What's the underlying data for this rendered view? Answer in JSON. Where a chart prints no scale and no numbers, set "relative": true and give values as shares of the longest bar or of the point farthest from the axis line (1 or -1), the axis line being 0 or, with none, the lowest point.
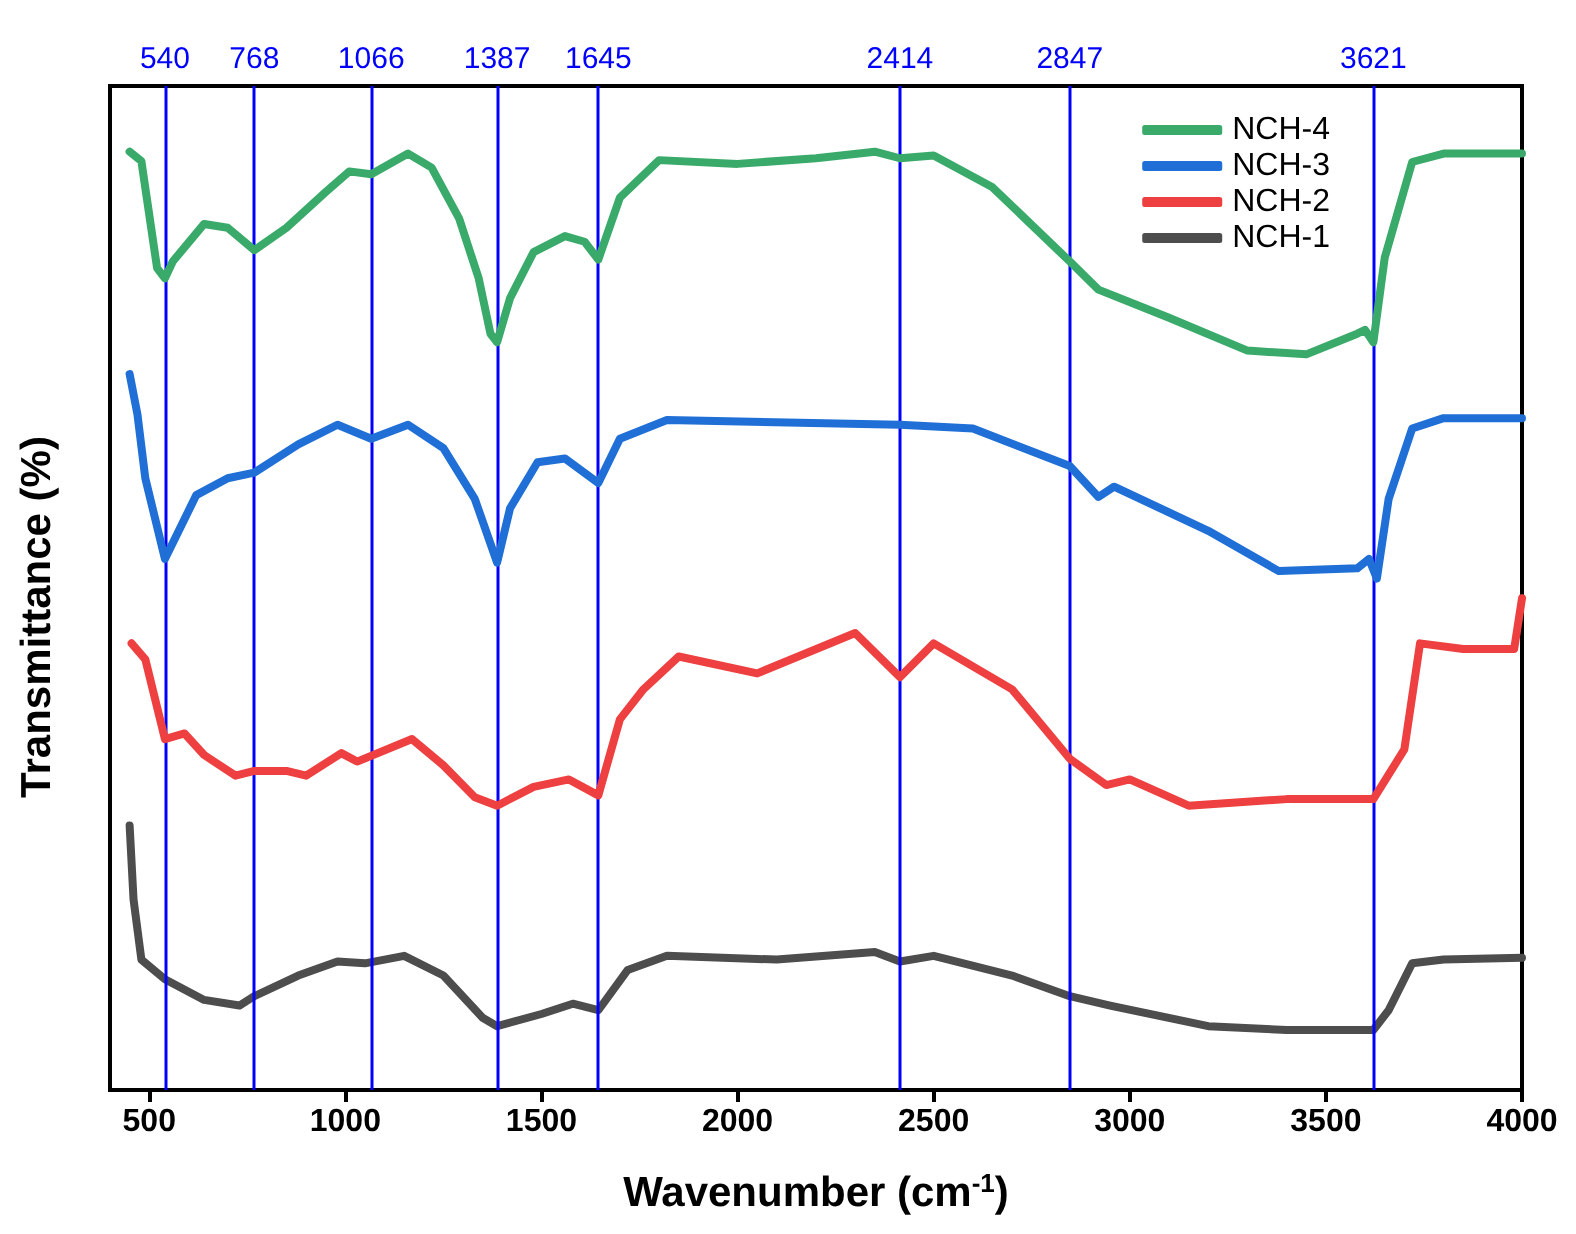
{
  "chart_data": {
    "type": "line",
    "xlabel": "Wavenumber (cm$^{-1}$)",
    "ylabel": "Transmittance (%)",
    "relative": true,
    "xlim": [
      400,
      4000
    ],
    "xticks": [
      500,
      1000,
      1500,
      2000,
      2500,
      3000,
      3500,
      4000
    ],
    "legend": "top right",
    "grid": false,
    "marker": "none",
    "line_style": "solid",
    "ref_lines": [
      {
        "axis": "x",
        "value": 540,
        "label": "540",
        "color": "#0000ff"
      },
      {
        "axis": "x",
        "value": 768,
        "label": "768",
        "color": "#0000ff"
      },
      {
        "axis": "x",
        "value": 1066,
        "label": "1066",
        "color": "#0000ff"
      },
      {
        "axis": "x",
        "value": 1387,
        "label": "1387",
        "color": "#0000ff"
      },
      {
        "axis": "x",
        "value": 1645,
        "label": "1645",
        "color": "#0000ff"
      },
      {
        "axis": "x",
        "value": 2414,
        "label": "2414",
        "color": "#0000ff"
      },
      {
        "axis": "x",
        "value": 2847,
        "label": "2847",
        "color": "#0000ff"
      },
      {
        "axis": "x",
        "value": 3621,
        "label": "3621",
        "color": "#0000ff"
      }
    ],
    "series": [
      {
        "name": "NCH-4",
        "color": "#3aaa6a",
        "x": [
          450,
          480,
          520,
          540,
          560,
          640,
          700,
          768,
          850,
          950,
          1010,
          1066,
          1160,
          1220,
          1290,
          1340,
          1370,
          1387,
          1420,
          1480,
          1560,
          1610,
          1645,
          1700,
          1800,
          2000,
          2200,
          2350,
          2414,
          2500,
          2650,
          2847,
          2920,
          3100,
          3300,
          3450,
          3580,
          3600,
          3621,
          3650,
          3720,
          3800,
          4000
        ],
        "values": [
          1.0,
          0.99,
          0.876,
          0.865,
          0.883,
          0.923,
          0.919,
          0.895,
          0.919,
          0.957,
          0.979,
          0.976,
          0.998,
          0.983,
          0.929,
          0.865,
          0.806,
          0.797,
          0.844,
          0.893,
          0.91,
          0.904,
          0.885,
          0.951,
          0.991,
          0.987,
          0.993,
          1.0,
          0.993,
          0.996,
          0.962,
          0.883,
          0.853,
          0.823,
          0.788,
          0.784,
          0.806,
          0.81,
          0.797,
          0.887,
          0.989,
          0.998,
          0.998
        ]
      },
      {
        "name": "NCH-3",
        "color": "#1f6fd6",
        "x": [
          450,
          470,
          490,
          540,
          620,
          700,
          768,
          880,
          980,
          1066,
          1160,
          1250,
          1330,
          1387,
          1420,
          1490,
          1560,
          1645,
          1700,
          1820,
          2414,
          2600,
          2847,
          2920,
          2960,
          3200,
          3380,
          3580,
          3610,
          3630,
          3660,
          3720,
          3800,
          4000
        ],
        "values": [
          0.763,
          0.72,
          0.652,
          0.566,
          0.634,
          0.652,
          0.658,
          0.688,
          0.709,
          0.694,
          0.709,
          0.684,
          0.63,
          0.562,
          0.62,
          0.669,
          0.673,
          0.647,
          0.694,
          0.714,
          0.709,
          0.705,
          0.665,
          0.632,
          0.643,
          0.596,
          0.553,
          0.556,
          0.566,
          0.545,
          0.63,
          0.705,
          0.716,
          0.716
        ]
      },
      {
        "name": "NCH-2",
        "color": "#ee4040",
        "x": [
          455,
          490,
          540,
          590,
          640,
          720,
          768,
          850,
          900,
          990,
          1030,
          1170,
          1250,
          1330,
          1387,
          1480,
          1570,
          1645,
          1700,
          1760,
          1850,
          2050,
          2300,
          2414,
          2500,
          2700,
          2847,
          2940,
          3000,
          3150,
          3400,
          3621,
          3700,
          3740,
          3850,
          3980,
          4000
        ],
        "values": [
          0.476,
          0.459,
          0.374,
          0.38,
          0.357,
          0.335,
          0.34,
          0.34,
          0.335,
          0.359,
          0.35,
          0.374,
          0.346,
          0.312,
          0.303,
          0.323,
          0.331,
          0.314,
          0.395,
          0.427,
          0.462,
          0.444,
          0.487,
          0.44,
          0.476,
          0.427,
          0.353,
          0.325,
          0.331,
          0.303,
          0.31,
          0.31,
          0.363,
          0.476,
          0.47,
          0.47,
          0.524
        ]
      },
      {
        "name": "NCH-1",
        "color": "#4d4d4d",
        "x": [
          450,
          460,
          480,
          540,
          640,
          730,
          768,
          880,
          980,
          1050,
          1150,
          1250,
          1350,
          1387,
          1500,
          1580,
          1645,
          1720,
          1820,
          2100,
          2350,
          2414,
          2500,
          2700,
          2847,
          2950,
          3200,
          3400,
          3621,
          3660,
          3720,
          3800,
          4000
        ],
        "values": [
          0.282,
          0.203,
          0.139,
          0.118,
          0.096,
          0.09,
          0.1,
          0.122,
          0.137,
          0.135,
          0.143,
          0.122,
          0.077,
          0.068,
          0.081,
          0.092,
          0.085,
          0.128,
          0.143,
          0.139,
          0.147,
          0.137,
          0.143,
          0.122,
          0.1,
          0.09,
          0.068,
          0.064,
          0.064,
          0.085,
          0.135,
          0.139,
          0.141
        ]
      }
    ]
  }
}
